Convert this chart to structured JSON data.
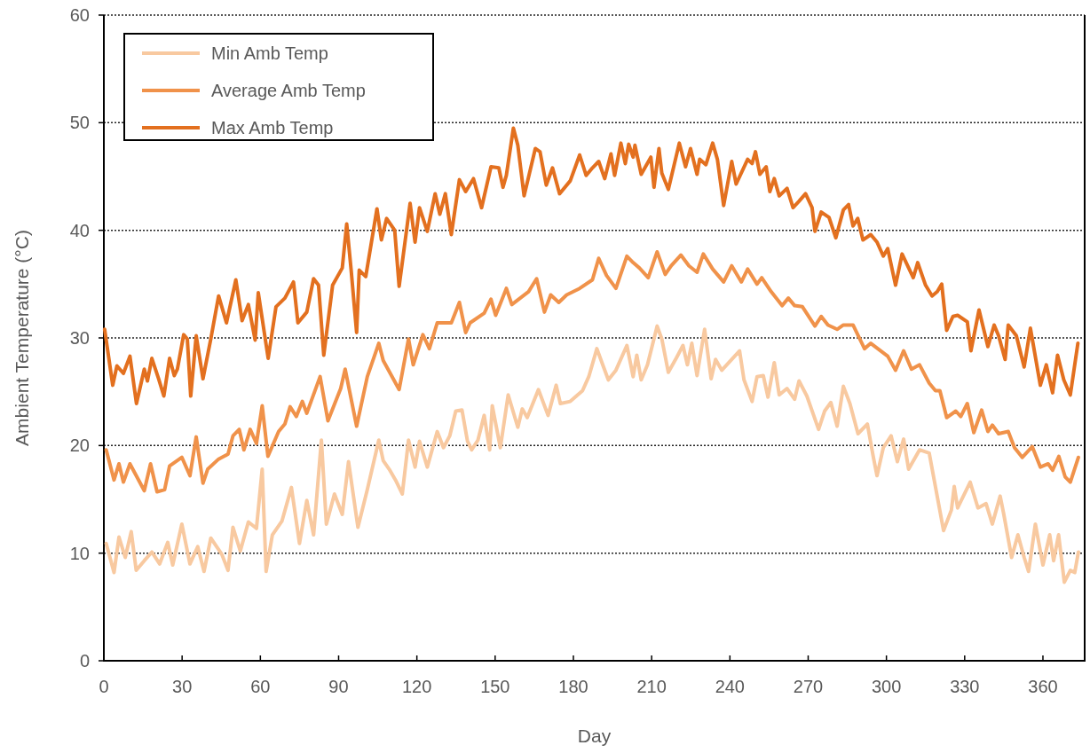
{
  "chart_data": {
    "type": "line",
    "xlabel": "Day",
    "ylabel": "Ambient Temperature (°C)",
    "xlim": [
      0,
      376
    ],
    "ylim": [
      0,
      60
    ],
    "xticks": [
      0,
      30,
      60,
      90,
      120,
      150,
      180,
      210,
      240,
      270,
      300,
      330,
      360
    ],
    "yticks": [
      0,
      10,
      20,
      30,
      40,
      50,
      60
    ],
    "grid": "y",
    "legend": "top left",
    "line_style": "solid",
    "marker": "none",
    "series": [
      {
        "name": "Min Amb Temp",
        "color": "#f8c9a0",
        "x": [
          0.9,
          3.9,
          5.8,
          8.2,
          10.5,
          12.4,
          15.5,
          18.4,
          21.4,
          24.5,
          26.4,
          29.9,
          33,
          36,
          38.4,
          41,
          45.2,
          47.6,
          49.5,
          52.3,
          55.4,
          58.5,
          60.7,
          62.2,
          64.6,
          68.3,
          71.9,
          75,
          77.8,
          80.4,
          83.4,
          85.3,
          88.4,
          91.4,
          93.8,
          97.4,
          101,
          105.4,
          107.1,
          109.4,
          111.8,
          114.4,
          116.8,
          119.3,
          121,
          124,
          127.8,
          130.2,
          132.6,
          134.9,
          137.3,
          139.4,
          141,
          143.4,
          145.8,
          147.9,
          148.9,
          152,
          155,
          158.7,
          160.4,
          162.3,
          166.6,
          170.3,
          173.4,
          175,
          178.8,
          183.5,
          185.9,
          189,
          191.4,
          193.4,
          196.3,
          200.5,
          202.9,
          204.3,
          206,
          208.4,
          212.1,
          213.9,
          216.4,
          219.4,
          222,
          223.7,
          225.4,
          227.4,
          230.3,
          232.8,
          234.5,
          236.9,
          243.7,
          245.4,
          248.5,
          250.4,
          252.8,
          254.6,
          257,
          258.9,
          261.9,
          264.8,
          266.5,
          269.5,
          274,
          276.3,
          278.7,
          281.1,
          283.5,
          286,
          289.1,
          292.7,
          295,
          296.4,
          298.8,
          301.8,
          304.2,
          306.6,
          308.5,
          312.7,
          316.4,
          321.9,
          324.9,
          326,
          327.3,
          332.1,
          335.1,
          338.2,
          340.6,
          343.6,
          345,
          348,
          350.4,
          352.8,
          354.5,
          357.1,
          360,
          362.6,
          364.1,
          366,
          368.2,
          370.5,
          372.2,
          373.6
        ],
        "values": [
          10.9,
          8.2,
          11.5,
          9.6,
          12,
          8.4,
          9.3,
          10.1,
          9,
          11,
          8.9,
          12.7,
          9,
          10.6,
          8.3,
          11.4,
          9.9,
          8.4,
          12.4,
          10.2,
          12.9,
          12.3,
          17.8,
          8.3,
          11.7,
          13,
          16.1,
          10.9,
          14.9,
          11.7,
          20.5,
          12.7,
          15.5,
          13.6,
          18.5,
          12.4,
          15.9,
          20.5,
          18.6,
          17.8,
          16.8,
          15.5,
          20.5,
          18,
          20.4,
          18,
          21.3,
          19.8,
          20.9,
          23.2,
          23.3,
          20.4,
          19.6,
          20.5,
          22.8,
          19.6,
          23.7,
          19.8,
          24.7,
          21.7,
          23.4,
          22.6,
          25.2,
          22.8,
          25.6,
          23.9,
          24.1,
          25.1,
          26.4,
          29,
          27.4,
          26.1,
          27,
          29.3,
          26.4,
          28.4,
          26.1,
          27.5,
          31.1,
          29.9,
          26.8,
          28.1,
          29.3,
          27.5,
          29.5,
          26.5,
          30.8,
          26.2,
          28,
          27,
          28.8,
          26.1,
          24.1,
          26.4,
          26.5,
          24.5,
          27.7,
          24.7,
          25.3,
          24.3,
          26,
          24.6,
          21.5,
          23.2,
          24,
          21.8,
          25.5,
          23.9,
          21.1,
          22,
          18.9,
          17.2,
          19.8,
          20.9,
          18.5,
          20.6,
          17.8,
          19.6,
          19.3,
          12.1,
          14,
          16.2,
          14.2,
          16.6,
          14.2,
          14.6,
          12.7,
          15.3,
          13.6,
          9.6,
          11.7,
          9.6,
          8.3,
          12.7,
          8.9,
          11.7,
          9.3,
          11.7,
          7.3,
          8.4,
          8.2,
          10.1
        ]
      },
      {
        "name": "Average Amb Temp",
        "color": "#f0924a",
        "x": [
          0.9,
          3.9,
          5.8,
          7.5,
          10,
          15.5,
          17.9,
          20.4,
          23.3,
          25.2,
          29.9,
          33,
          35.4,
          38,
          39.8,
          43.8,
          47.6,
          49.5,
          51.9,
          53.7,
          56.1,
          58.5,
          60.7,
          62.9,
          67,
          69.4,
          71.4,
          73.8,
          76.1,
          77.8,
          82.9,
          85.9,
          90.8,
          92.5,
          96.9,
          101,
          105.4,
          107.1,
          113.2,
          116.8,
          118.6,
          122.3,
          124.8,
          127.8,
          133.2,
          136.3,
          138.7,
          140.4,
          145.8,
          148.4,
          150.2,
          154.3,
          156.4,
          162.8,
          165.9,
          168.9,
          171.3,
          174.4,
          177.4,
          182.4,
          187.3,
          189.7,
          192.7,
          196.3,
          200.5,
          202.9,
          205.3,
          208.7,
          212.1,
          215.2,
          217.5,
          221.2,
          224.3,
          227.4,
          229.8,
          233.4,
          237.6,
          240.7,
          244.4,
          246.8,
          250.4,
          252.2,
          255.8,
          260,
          262.4,
          264.8,
          267.8,
          272.6,
          275,
          277.6,
          281.1,
          283.5,
          287.2,
          291.6,
          294,
          300.5,
          303.5,
          306.6,
          309.6,
          312.7,
          316.4,
          318.8,
          320.5,
          323.1,
          326.6,
          328.5,
          331,
          333.5,
          336.5,
          338.9,
          340.6,
          343,
          346.7,
          349.1,
          352.1,
          355.9,
          359,
          362,
          363.7,
          366.1,
          368.5,
          370.5,
          373.6
        ],
        "values": [
          19.6,
          16.8,
          18.3,
          16.6,
          18.3,
          15.8,
          18.3,
          15.7,
          15.9,
          18.1,
          18.9,
          17.2,
          20.8,
          16.5,
          17.8,
          18.7,
          19.2,
          20.9,
          21.5,
          19.6,
          21.5,
          20.2,
          23.7,
          19,
          21.3,
          22,
          23.6,
          22.7,
          24.1,
          23,
          26.4,
          22.3,
          25.3,
          27.1,
          21.8,
          26.4,
          29.5,
          27.9,
          25.2,
          29.9,
          27.5,
          30.3,
          29,
          31.4,
          31.4,
          33.3,
          30.5,
          31.4,
          32.3,
          33.6,
          32.1,
          34.6,
          33.1,
          34.3,
          35.5,
          32.4,
          34,
          33.3,
          34,
          34.6,
          35.4,
          37.4,
          35.8,
          34.6,
          37.6,
          37,
          36.5,
          35.6,
          38,
          35.9,
          36.7,
          37.7,
          36.7,
          36.1,
          37.8,
          36.4,
          35.2,
          36.7,
          35.2,
          36.4,
          35,
          35.6,
          34.3,
          33,
          33.7,
          33,
          32.9,
          31.1,
          32,
          31.2,
          30.8,
          31.2,
          31.2,
          29,
          29.5,
          28.3,
          27,
          28.8,
          27.1,
          27.5,
          25.8,
          25.1,
          25.1,
          22.6,
          23.2,
          22.7,
          23.9,
          21.2,
          23.3,
          21.3,
          21.9,
          21.1,
          21.3,
          19.8,
          18.9,
          19.9,
          18,
          18.3,
          17.7,
          19,
          17.1,
          16.6,
          18.9
        ]
      },
      {
        "name": "Max Amb Temp",
        "color": "#e3701f",
        "x": [
          0.3,
          3.4,
          5,
          7.5,
          10,
          12.5,
          15.5,
          16.7,
          18.4,
          21,
          23,
          25.2,
          27,
          28.2,
          30.6,
          32,
          33.3,
          35.4,
          38,
          41,
          44,
          47,
          50.6,
          53,
          55.4,
          58,
          59.2,
          63,
          66,
          69.4,
          72.7,
          74.4,
          77.8,
          80.4,
          82.3,
          84.3,
          87.7,
          91.4,
          93.1,
          94.8,
          96.9,
          97.9,
          100.4,
          104.7,
          106.4,
          108.4,
          111.5,
          113.2,
          117.4,
          119.3,
          121,
          124,
          127,
          128.8,
          130.9,
          133.2,
          136.3,
          138.7,
          141.7,
          144.8,
          148.4,
          151.4,
          153,
          154.3,
          157,
          158.7,
          161.1,
          165.4,
          167.2,
          169.6,
          172,
          174.7,
          178.8,
          182.4,
          184.9,
          187.3,
          189.7,
          192,
          194.4,
          195.8,
          198.2,
          199.9,
          201.2,
          202.9,
          203.6,
          206,
          209.7,
          210.9,
          212.8,
          213.9,
          216.4,
          220.6,
          223,
          224.9,
          227.4,
          228.4,
          230.8,
          233.4,
          235.2,
          237.6,
          240.7,
          242.4,
          246.8,
          248.5,
          249.8,
          251.5,
          253.9,
          255.3,
          257,
          258.9,
          261.9,
          264.2,
          266.5,
          269,
          271.5,
          272.6,
          275,
          278,
          280.6,
          283.5,
          285.5,
          287.2,
          289,
          291,
          294,
          296.4,
          298.8,
          300.5,
          303.5,
          306,
          310.3,
          312,
          315,
          317.5,
          319.5,
          321.2,
          323.1,
          325.5,
          327.3,
          331,
          332.4,
          335.5,
          338.9,
          341.3,
          343,
          345.5,
          346.7,
          349.8,
          352.8,
          355.2,
          359,
          361.3,
          363.7,
          365.6,
          368,
          370.5,
          373.4
        ],
        "values": [
          30.8,
          25.6,
          27.4,
          26.7,
          28.3,
          23.9,
          27.1,
          26,
          28.1,
          26.2,
          24.6,
          28.1,
          26.5,
          27.1,
          30.3,
          29.9,
          24.6,
          30.2,
          26.2,
          29.9,
          33.9,
          31.4,
          35.4,
          31.6,
          33.1,
          29.8,
          34.2,
          28.1,
          32.9,
          33.7,
          35.2,
          31.4,
          32.4,
          35.5,
          34.9,
          28.4,
          34.9,
          36.5,
          40.6,
          36.3,
          30.5,
          36.3,
          35.7,
          42,
          39.1,
          41.1,
          40,
          34.8,
          42.5,
          38.9,
          42.1,
          39.9,
          43.4,
          41.5,
          43.4,
          39.6,
          44.7,
          43.6,
          44.8,
          42.1,
          45.9,
          45.8,
          44,
          45.1,
          49.5,
          47.9,
          43.2,
          47.6,
          47.3,
          44.2,
          45.8,
          43.4,
          44.6,
          47,
          45.1,
          45.8,
          46.4,
          44.8,
          47.1,
          45.1,
          48.1,
          46.2,
          48,
          46.8,
          47.9,
          45.2,
          46.8,
          44,
          47.6,
          45.3,
          43.8,
          48.1,
          45.9,
          47.6,
          45.2,
          46.6,
          46.1,
          48.1,
          46.6,
          42.3,
          46.4,
          44.3,
          46.6,
          46.2,
          47.3,
          45.2,
          45.9,
          43.6,
          44.8,
          43.2,
          43.9,
          42.1,
          42.7,
          43.4,
          42.1,
          39.9,
          41.7,
          41.2,
          39.3,
          41.9,
          42.4,
          40.4,
          41.1,
          39.1,
          39.6,
          38.9,
          37.6,
          38.3,
          34.9,
          37.8,
          35.6,
          37,
          34.9,
          33.9,
          34.3,
          35,
          30.7,
          32,
          32.1,
          31.5,
          28.8,
          32.6,
          29.2,
          31.2,
          30.2,
          28,
          31.2,
          30.2,
          27.3,
          30.9,
          25.6,
          27.5,
          24.9,
          28.4,
          26.1,
          24.7,
          29.5
        ]
      }
    ]
  }
}
